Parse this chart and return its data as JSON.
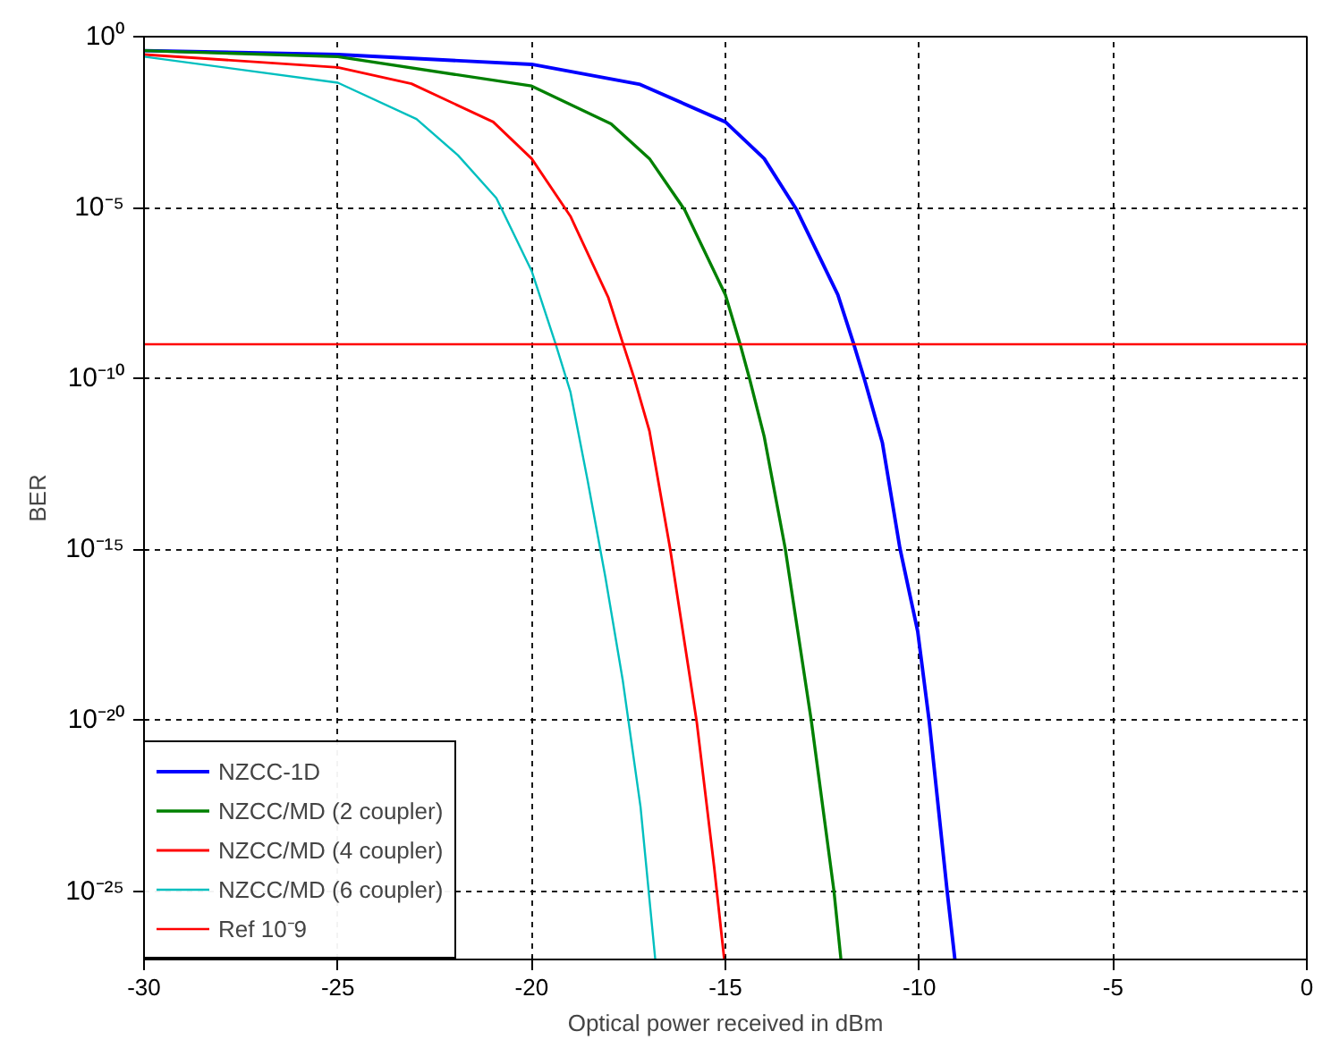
{
  "chart_data": {
    "type": "line",
    "xlabel": "Optical power received in dBm",
    "ylabel": "BER",
    "log": "y",
    "xlim": [
      -30,
      0
    ],
    "xticks": [
      -30,
      -25,
      -20,
      -15,
      -10,
      -5,
      0
    ],
    "ylim": [
      1e-27,
      1
    ],
    "yticks": [
      {
        "value": 1,
        "label": "10⁰"
      },
      {
        "value": 1e-05,
        "label": "10⁻⁵"
      },
      {
        "value": 1e-10,
        "label": "10⁻¹⁰"
      },
      {
        "value": 1e-15,
        "label": "10⁻¹⁵"
      },
      {
        "value": 1e-20,
        "label": "10⁻²⁰"
      },
      {
        "value": 1e-25,
        "label": "10⁻²⁵"
      }
    ],
    "grid": true,
    "legend": "bottom left",
    "line_style": "solid",
    "series": [
      {
        "name": "NZCC-1D",
        "color": "#0000ff",
        "x": [
          -30,
          -25,
          -20,
          -17.2,
          -15,
          -14,
          -13.16,
          -12.1,
          -11.7,
          -11.41,
          -10.95,
          -10.5,
          -10.04,
          -9.74,
          -9.28,
          -9.08
        ],
        "values": [
          0.39,
          0.3,
          0.155,
          0.04,
          0.0032,
          0.00027,
          8.5e-06,
          2.8e-08,
          1.1e-09,
          9.1e-11,
          1.3e-12,
          1.1e-15,
          4e-18,
          8.9e-21,
          1e-25,
          1e-27
        ]
      },
      {
        "name": "NZCC/MD (2 coupler)",
        "color": "#008000",
        "x": [
          -30,
          -25,
          -20,
          -17.95,
          -16.96,
          -16.05,
          -15.0,
          -14.63,
          -14.37,
          -14.0,
          -13.46,
          -12.78,
          -12.2,
          -12.02
        ],
        "values": [
          0.39,
          0.26,
          0.036,
          0.0028,
          0.00027,
          8.5e-06,
          2.8e-08,
          1.1e-09,
          9.1e-11,
          2e-12,
          1.1e-15,
          8.9e-21,
          1e-25,
          1e-27
        ]
      },
      {
        "name": "NZCC/MD (4 coupler)",
        "color": "#ff0000",
        "x": [
          -30,
          -25,
          -23.1,
          -20.99,
          -20,
          -19.0,
          -18.02,
          -17.65,
          -17.34,
          -16.96,
          -16.43,
          -15.74,
          -15.29,
          -15.03
        ],
        "values": [
          0.3,
          0.126,
          0.042,
          0.0032,
          0.00027,
          5.6e-06,
          2.3e-08,
          1.1e-09,
          9.1e-11,
          2.9e-12,
          1.1e-15,
          8.9e-21,
          5e-25,
          1e-27
        ]
      },
      {
        "name": "NZCC/MD (6 coupler)",
        "color": "#00bfbf",
        "x": [
          -30,
          -25,
          -22.97,
          -21.9,
          -20.91,
          -20,
          -19.39,
          -19.0,
          -18.56,
          -18.1,
          -17.65,
          -17.19,
          -16.81
        ],
        "values": [
          0.26,
          0.045,
          0.0039,
          0.00034,
          1.9e-05,
          1.4e-07,
          1.1e-09,
          4.1e-11,
          1.1e-13,
          1.6e-16,
          1.5e-19,
          2.9e-23,
          1e-27
        ]
      }
    ],
    "ref_lines": [
      {
        "axis": "y",
        "value": 1e-09,
        "label": "Ref 10⁻9",
        "color": "#ff0000",
        "line_style": "solid"
      }
    ]
  }
}
